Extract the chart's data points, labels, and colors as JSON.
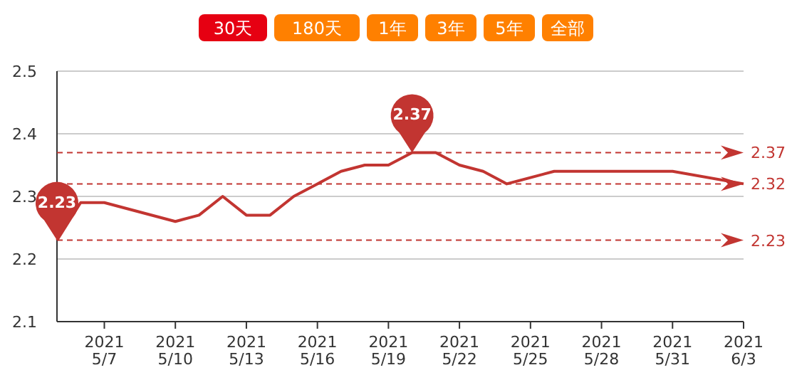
{
  "chart_data": {
    "type": "line",
    "x": [
      "2021-05-05",
      "2021-05-06",
      "2021-05-07",
      "2021-05-10",
      "2021-05-11",
      "2021-05-12",
      "2021-05-13",
      "2021-05-14",
      "2021-05-15",
      "2021-05-16",
      "2021-05-17",
      "2021-05-18",
      "2021-05-19",
      "2021-05-20",
      "2021-05-21",
      "2021-05-22",
      "2021-05-23",
      "2021-05-24",
      "2021-05-26",
      "2021-05-31",
      "2021-06-03"
    ],
    "series": [
      {
        "color": "#c23531",
        "values": [
          2.23,
          2.29,
          2.29,
          2.26,
          2.27,
          2.3,
          2.27,
          2.27,
          2.3,
          2.32,
          2.34,
          2.35,
          2.35,
          2.37,
          2.37,
          2.35,
          2.34,
          2.32,
          2.34,
          2.34,
          2.32
        ]
      }
    ],
    "xlim": [
      "2021-05-05",
      "2021-06-03"
    ],
    "xticks": [
      {
        "value": "2021-05-07",
        "label": "2021 5/7"
      },
      {
        "value": "2021-05-10",
        "label": "2021 5/10"
      },
      {
        "value": "2021-05-13",
        "label": "2021 5/13"
      },
      {
        "value": "2021-05-16",
        "label": "2021 5/16"
      },
      {
        "value": "2021-05-19",
        "label": "2021 5/19"
      },
      {
        "value": "2021-05-22",
        "label": "2021 5/22"
      },
      {
        "value": "2021-05-25",
        "label": "2021 5/25"
      },
      {
        "value": "2021-05-28",
        "label": "2021 5/28"
      },
      {
        "value": "2021-05-31",
        "label": "2021 5/31"
      },
      {
        "value": "2021-06-03",
        "label": "2021 6/3"
      }
    ],
    "ylim": [
      2.1,
      2.5
    ],
    "yticks": [
      2.1,
      2.2,
      2.3,
      2.4,
      2.5
    ],
    "grid": "y",
    "line_style": "solid",
    "ref_lines": [
      {
        "axis": "y",
        "value": 2.37,
        "label": "2.37",
        "color": "#c23531",
        "line_style": "dashed"
      },
      {
        "axis": "y",
        "value": 2.32,
        "label": "2.32",
        "color": "#c23531",
        "line_style": "dashed"
      },
      {
        "axis": "y",
        "value": 2.23,
        "label": "2.23",
        "color": "#c23531",
        "line_style": "dashed"
      }
    ],
    "annotations": [
      "30天",
      "180天",
      "1年",
      "3年",
      "5年",
      "全部",
      {
        "text": "2.23",
        "x": "2021-05-05",
        "y": 2.23
      },
      {
        "text": "2.37",
        "x": "2021-05-20",
        "y": 2.37
      }
    ]
  }
}
